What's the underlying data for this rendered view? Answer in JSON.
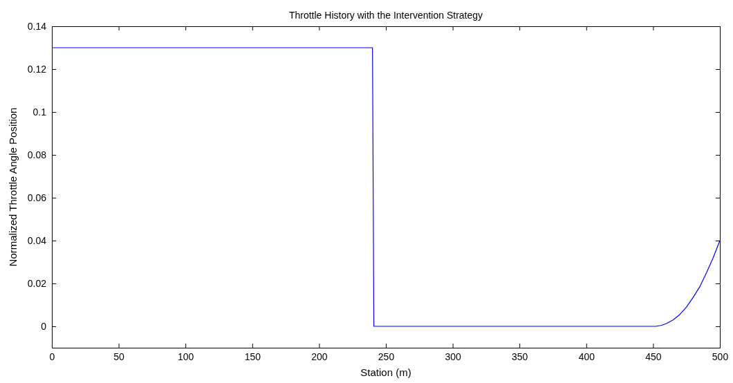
{
  "chart_data": {
    "type": "line",
    "title": "Throttle History with the Intervention Strategy",
    "xlabel": "Station (m)",
    "ylabel": "Normalized Throttle Angle Position",
    "x": [
      0,
      240,
      241,
      452,
      456,
      460,
      465,
      470,
      475,
      480,
      485,
      490,
      495,
      500
    ],
    "series": [
      {
        "color": "#0000ff",
        "values": [
          0.13,
          0.13,
          0,
          0,
          0.0004,
          0.0013,
          0.003,
          0.0055,
          0.009,
          0.0135,
          0.0185,
          0.025,
          0.032,
          0.04
        ]
      }
    ],
    "xlim": [
      0,
      500
    ],
    "xticks": [
      0,
      50,
      100,
      150,
      200,
      250,
      300,
      350,
      400,
      450,
      500
    ],
    "ylim": [
      -0.01,
      0.14
    ],
    "yticks": [
      0,
      0.02,
      0.04,
      0.06,
      0.08,
      0.1,
      0.12,
      0.14
    ],
    "grid": false,
    "marker": "none",
    "line_style": "solid"
  }
}
